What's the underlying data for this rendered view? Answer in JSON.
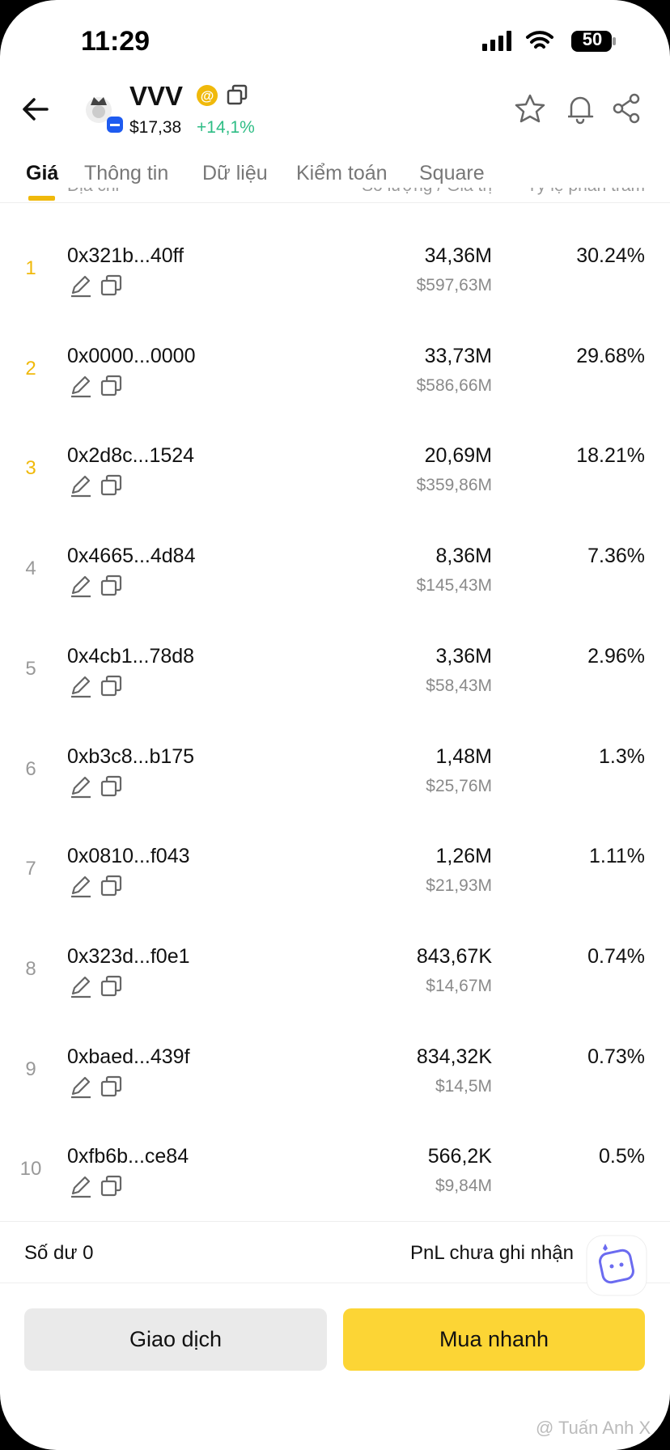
{
  "status": {
    "time": "11:29",
    "battery": "50"
  },
  "header": {
    "name": "VVV",
    "price": "$17,38",
    "change": "+14,1%"
  },
  "tabs": [
    "Giá",
    "Thông tin",
    "Dữ liệu",
    "Kiểm toán",
    "Square"
  ],
  "columns": [
    "Địa chỉ",
    "Số lượng / Giá trị",
    "Tỷ lệ phần trăm"
  ],
  "rows": [
    {
      "rank": "1",
      "address": "0x321b...40ff",
      "amount": "34,36M",
      "value": "$597,63M",
      "percent": "30.24%"
    },
    {
      "rank": "2",
      "address": "0x0000...0000",
      "amount": "33,73M",
      "value": "$586,66M",
      "percent": "29.68%"
    },
    {
      "rank": "3",
      "address": "0x2d8c...1524",
      "amount": "20,69M",
      "value": "$359,86M",
      "percent": "18.21%"
    },
    {
      "rank": "4",
      "address": "0x4665...4d84",
      "amount": "8,36M",
      "value": "$145,43M",
      "percent": "7.36%"
    },
    {
      "rank": "5",
      "address": "0x4cb1...78d8",
      "amount": "3,36M",
      "value": "$58,43M",
      "percent": "2.96%"
    },
    {
      "rank": "6",
      "address": "0xb3c8...b175",
      "amount": "1,48M",
      "value": "$25,76M",
      "percent": "1.3%"
    },
    {
      "rank": "7",
      "address": "0x0810...f043",
      "amount": "1,26M",
      "value": "$21,93M",
      "percent": "1.11%"
    },
    {
      "rank": "8",
      "address": "0x323d...f0e1",
      "amount": "843,67K",
      "value": "$14,67M",
      "percent": "0.74%"
    },
    {
      "rank": "9",
      "address": "0xbaed...439f",
      "amount": "834,32K",
      "value": "$14,5M",
      "percent": "0.73%"
    },
    {
      "rank": "10",
      "address": "0xfb6b...ce84",
      "amount": "566,2K",
      "value": "$9,84M",
      "percent": "0.5%"
    }
  ],
  "footer": {
    "balance": "Số dư 0",
    "pnl": "PnL chưa ghi nhận"
  },
  "buttons": [
    "Giao dịch",
    "Mua nhanh"
  ],
  "watermark": "@ Tuấn Anh X"
}
